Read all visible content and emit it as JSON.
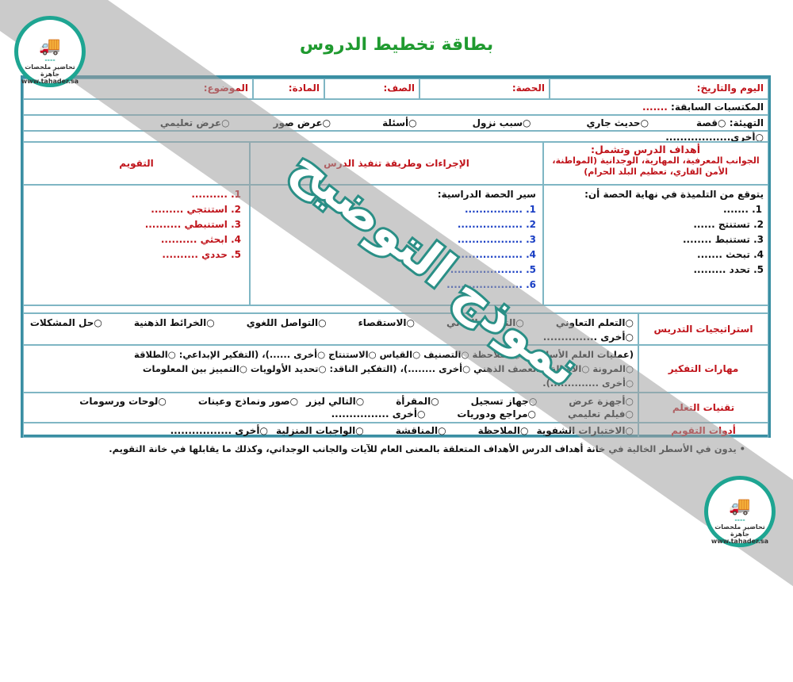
{
  "title": "بطاقة تخطيط الدروس",
  "logo": {
    "text": "تحاضير ملخصات جاهزة",
    "url": "www.tahader.sa"
  },
  "watermark": "نموذج التوضيح",
  "header": {
    "day_date": "اليوم والتاريخ:",
    "period": "الحصة:",
    "class": "الصف:",
    "subject": "المادة:",
    "topic": "الموضوع:"
  },
  "prior": {
    "label": "المكتسبات السابقة:",
    "value": "......."
  },
  "warmup": {
    "label": "التهيئة:",
    "options": [
      "قصة",
      "حديث جاري",
      "سبب نزول",
      "أسئلة",
      "عرض صور",
      "عرض تعليمي",
      "أخرى.................."
    ]
  },
  "columns": {
    "objectives_title": "أهداف الدرس وتشمل:",
    "objectives_sub": "الجوانب المعرفية، المهارية، الوجدانية (المواطنة، الأمن القاري، تعظيم البلد الحرام)",
    "procedures": "الإجراءات وطريقة تنفيذ الدرس",
    "evaluation": "التقويم"
  },
  "objectives": {
    "intro": "يتوقع من التلميذة في نهاية الحصة أن:",
    "items": [
      "1. .......",
      "2. تستنتج ......",
      "3. تستنبط ........",
      "4. تبحث .......",
      "5. تحدد ........."
    ]
  },
  "procedure": {
    "intro": "سير الحصة الدراسية:",
    "items": [
      "1. ................",
      "2. ..................",
      "3. ..................",
      "4. ...................",
      "5. ....................",
      "6. ....................."
    ]
  },
  "evaluation": {
    "items": [
      "1. ..........",
      "2. استنتجي .........",
      "3. استنبطي ..........",
      "4. ابحثي ..........",
      "5. حددي .........."
    ]
  },
  "strategies": {
    "label": "استراتيجيات التدريس",
    "options": [
      "التعلم التعاوني",
      "التقويم البنائي",
      "الاستقصاء",
      "التواصل اللغوي",
      "الخرائط الذهنية",
      "حل المشكلات",
      "أخرى ..............."
    ]
  },
  "thinking": {
    "label": "مهارات التفكير",
    "line1": "(عمليات العلم الأساسية: ○الملاحظة ○التصنيف ○القياس ○الاستنتاج ○أخرى ......)، (التفكير الإبداعي: ○الطلاقة",
    "line2": "○المرونة ○الأصالة ○العصف الذهني ○أخرى ........)، (التفكير الناقد: ○تحديد الأولويات ○التمييز بين المعلومات",
    "line3": "○أخرى ..............)."
  },
  "technologies": {
    "label": "تقنيات التعلم",
    "row1": [
      "أجهزة عرض",
      "جهاز تسجيل",
      "المقرأة",
      "التالي ليزر",
      "صور ونماذج وعينات",
      "لوحات ورسومات"
    ],
    "row2": [
      "فيلم تعليمي",
      "مراجع ودوريات",
      "أخرى ................"
    ]
  },
  "tools": {
    "label": "أدوات التقويم",
    "options": [
      "الاختبارات الشفوية",
      "الملاحظة",
      "المناقشة",
      "الواجبات المنزلية",
      "أخرى ................."
    ]
  },
  "footnote": "•  يدون في الأسطر الخالية في خانة أهداف الدرس الأهداف المتعلقة بالمعنى العام للآيات والجانب الوجداني، وكذلك ما يقابلها في خانة التقويم."
}
